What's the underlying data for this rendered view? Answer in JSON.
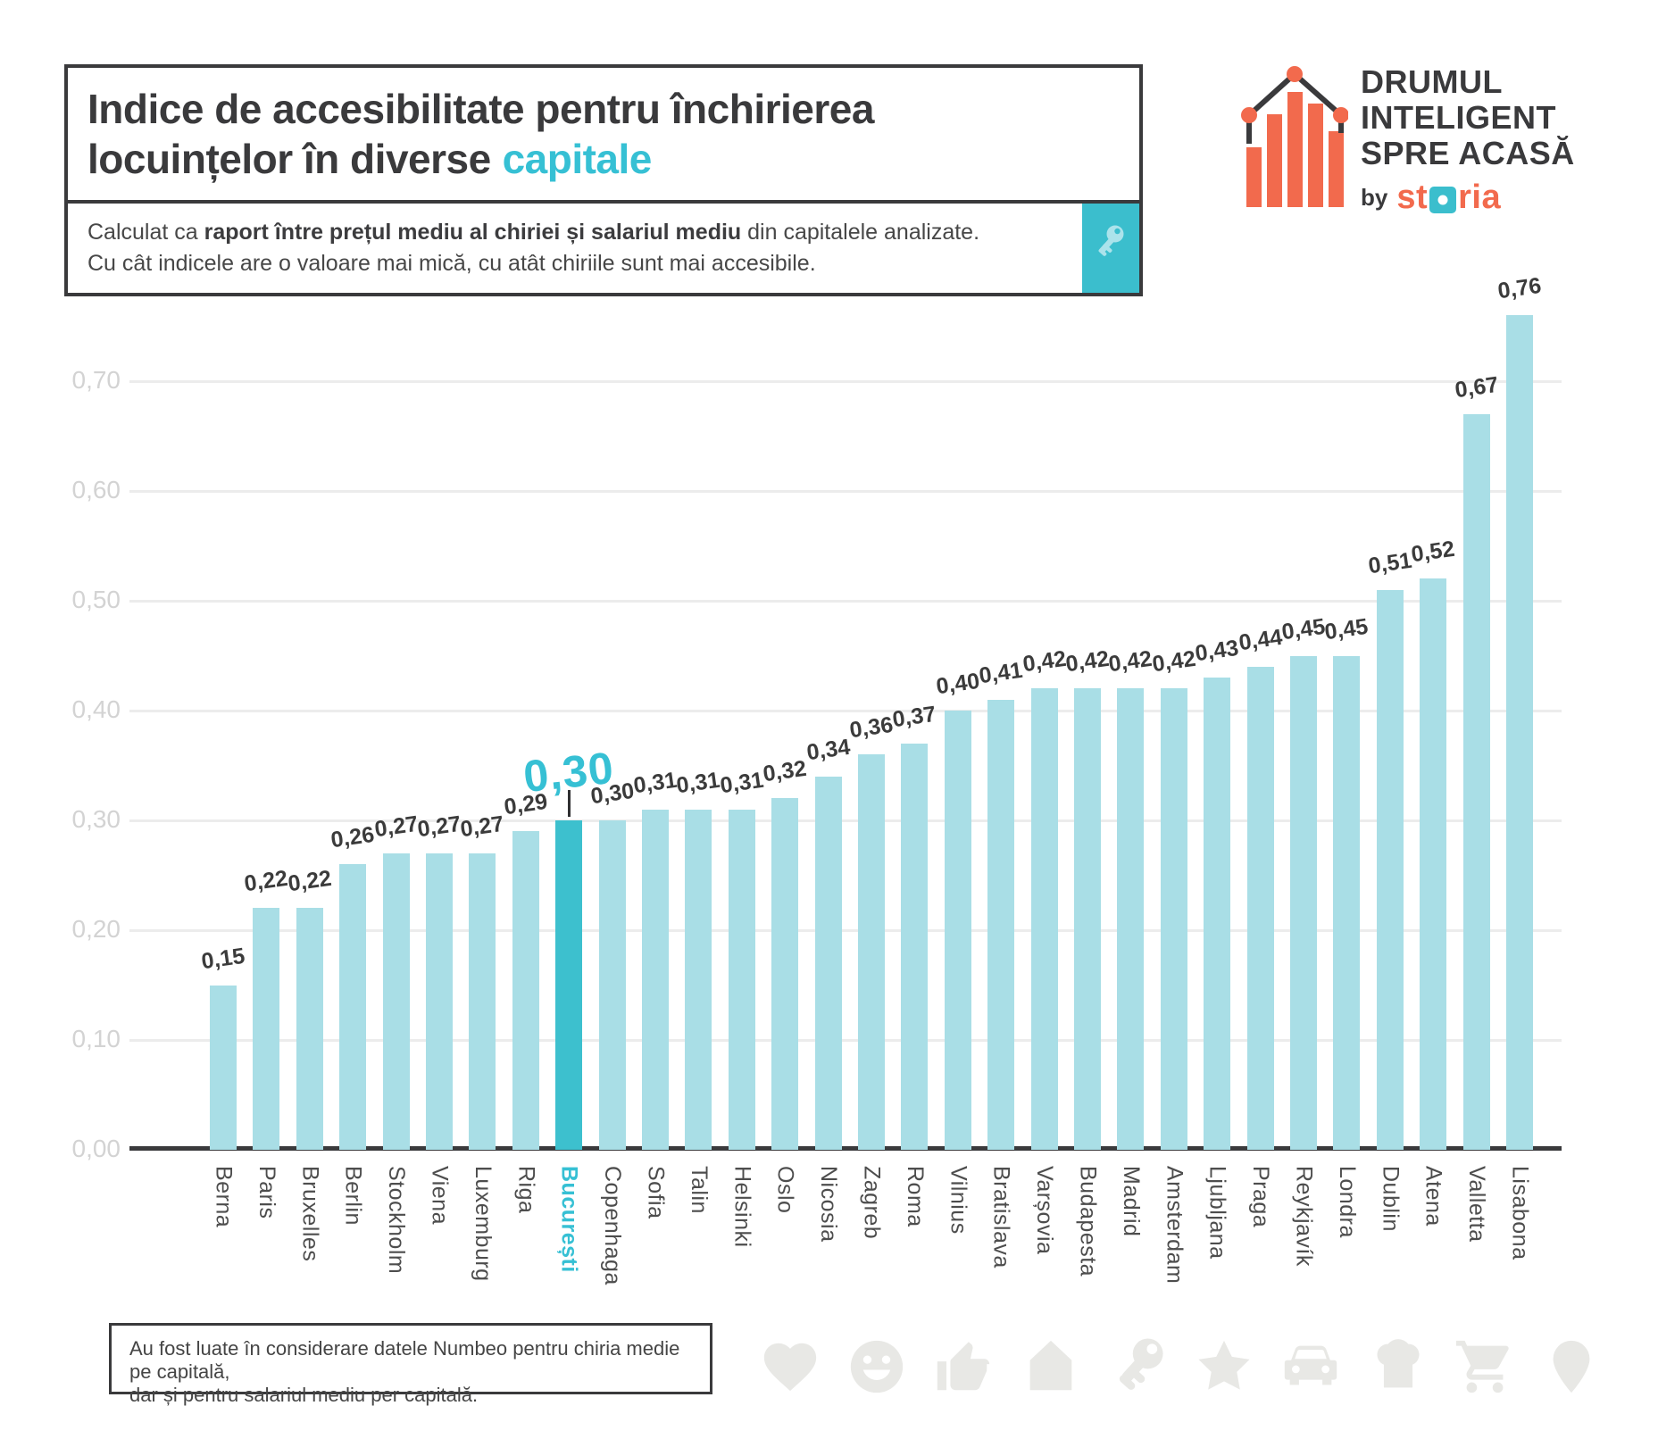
{
  "header": {
    "title_line1": "Indice de accesibilitate pentru închirierea",
    "title_line2": "locuințelor în diverse",
    "title_accent": "capitale",
    "subtitle_pre": "Calculat ca ",
    "subtitle_bold": "raport între prețul mediu al chiriei și salariul mediu",
    "subtitle_post": " din capitalele analizate.",
    "subtitle_line2": "Cu cât indicele are o valoare mai mică, cu atât chiriile sunt mai accesibile."
  },
  "logo": {
    "line1": "DRUMUL",
    "line2": "INTELIGENT",
    "line3": "SPRE ACASĂ",
    "by": "by",
    "brand_prefix": "st",
    "brand_suffix": "ria"
  },
  "chart_data": {
    "type": "bar",
    "title": "Indice de accesibilitate pentru închirierea locuințelor în diverse capitale",
    "categories": [
      "Berna",
      "Paris",
      "Bruxelles",
      "Berlin",
      "Stockholm",
      "Viena",
      "Luxemburg",
      "Riga",
      "București",
      "Copenhaga",
      "Sofia",
      "Talin",
      "Helsinki",
      "Oslo",
      "Nicosia",
      "Zagreb",
      "Roma",
      "Vilnius",
      "Bratislava",
      "Varșovia",
      "Budapesta",
      "Madrid",
      "Amsterdam",
      "Ljubljana",
      "Praga",
      "Reykjavík",
      "Londra",
      "Dublin",
      "Atena",
      "Valletta",
      "Lisabona"
    ],
    "values": [
      0.15,
      0.22,
      0.22,
      0.26,
      0.27,
      0.27,
      0.27,
      0.29,
      0.3,
      0.3,
      0.31,
      0.31,
      0.31,
      0.32,
      0.34,
      0.36,
      0.37,
      0.4,
      0.41,
      0.42,
      0.42,
      0.42,
      0.42,
      0.43,
      0.44,
      0.45,
      0.45,
      0.51,
      0.52,
      0.67,
      0.76
    ],
    "value_labels": [
      "0,15",
      "0,22",
      "0,22",
      "0,26",
      "0,27",
      "0,27",
      "0,27",
      "0,29",
      "0,30",
      "0,30",
      "0,31",
      "0,31",
      "0,31",
      "0,32",
      "0,34",
      "0,36",
      "0,37",
      "0,40",
      "0,41",
      "0,42",
      "0,42",
      "0,42",
      "0,42",
      "0,43",
      "0,44",
      "0,45",
      "0,45",
      "0,51",
      "0,52",
      "0,67",
      "0,76"
    ],
    "highlight": {
      "index": 8,
      "category": "București",
      "big_label": "0,30"
    },
    "yticks": [
      {
        "label": "0,00",
        "value": 0.0
      },
      {
        "label": "0,10",
        "value": 0.1
      },
      {
        "label": "0,20",
        "value": 0.2
      },
      {
        "label": "0,30",
        "value": 0.3
      },
      {
        "label": "0,40",
        "value": 0.4
      },
      {
        "label": "0,50",
        "value": 0.5
      },
      {
        "label": "0,60",
        "value": 0.6
      },
      {
        "label": "0,70",
        "value": 0.7
      }
    ],
    "ylim": [
      0,
      0.8
    ],
    "xlabel": "",
    "ylabel": "",
    "grid": "horizontal-light",
    "legend": "none",
    "bar_color": "#A9DEE6",
    "highlight_color": "#3DC0CE",
    "accent_color": "#36C0D4"
  },
  "footer": {
    "line1": "Au fost luate în considerare datele Numbeo pentru chiria medie pe capitală,",
    "line2": "dar și pentru salariul mediu per capitală."
  },
  "bottom_icons": [
    "heart",
    "smiley",
    "thumbs-up",
    "house",
    "key",
    "star",
    "car",
    "chef-hat",
    "cart",
    "pin"
  ]
}
